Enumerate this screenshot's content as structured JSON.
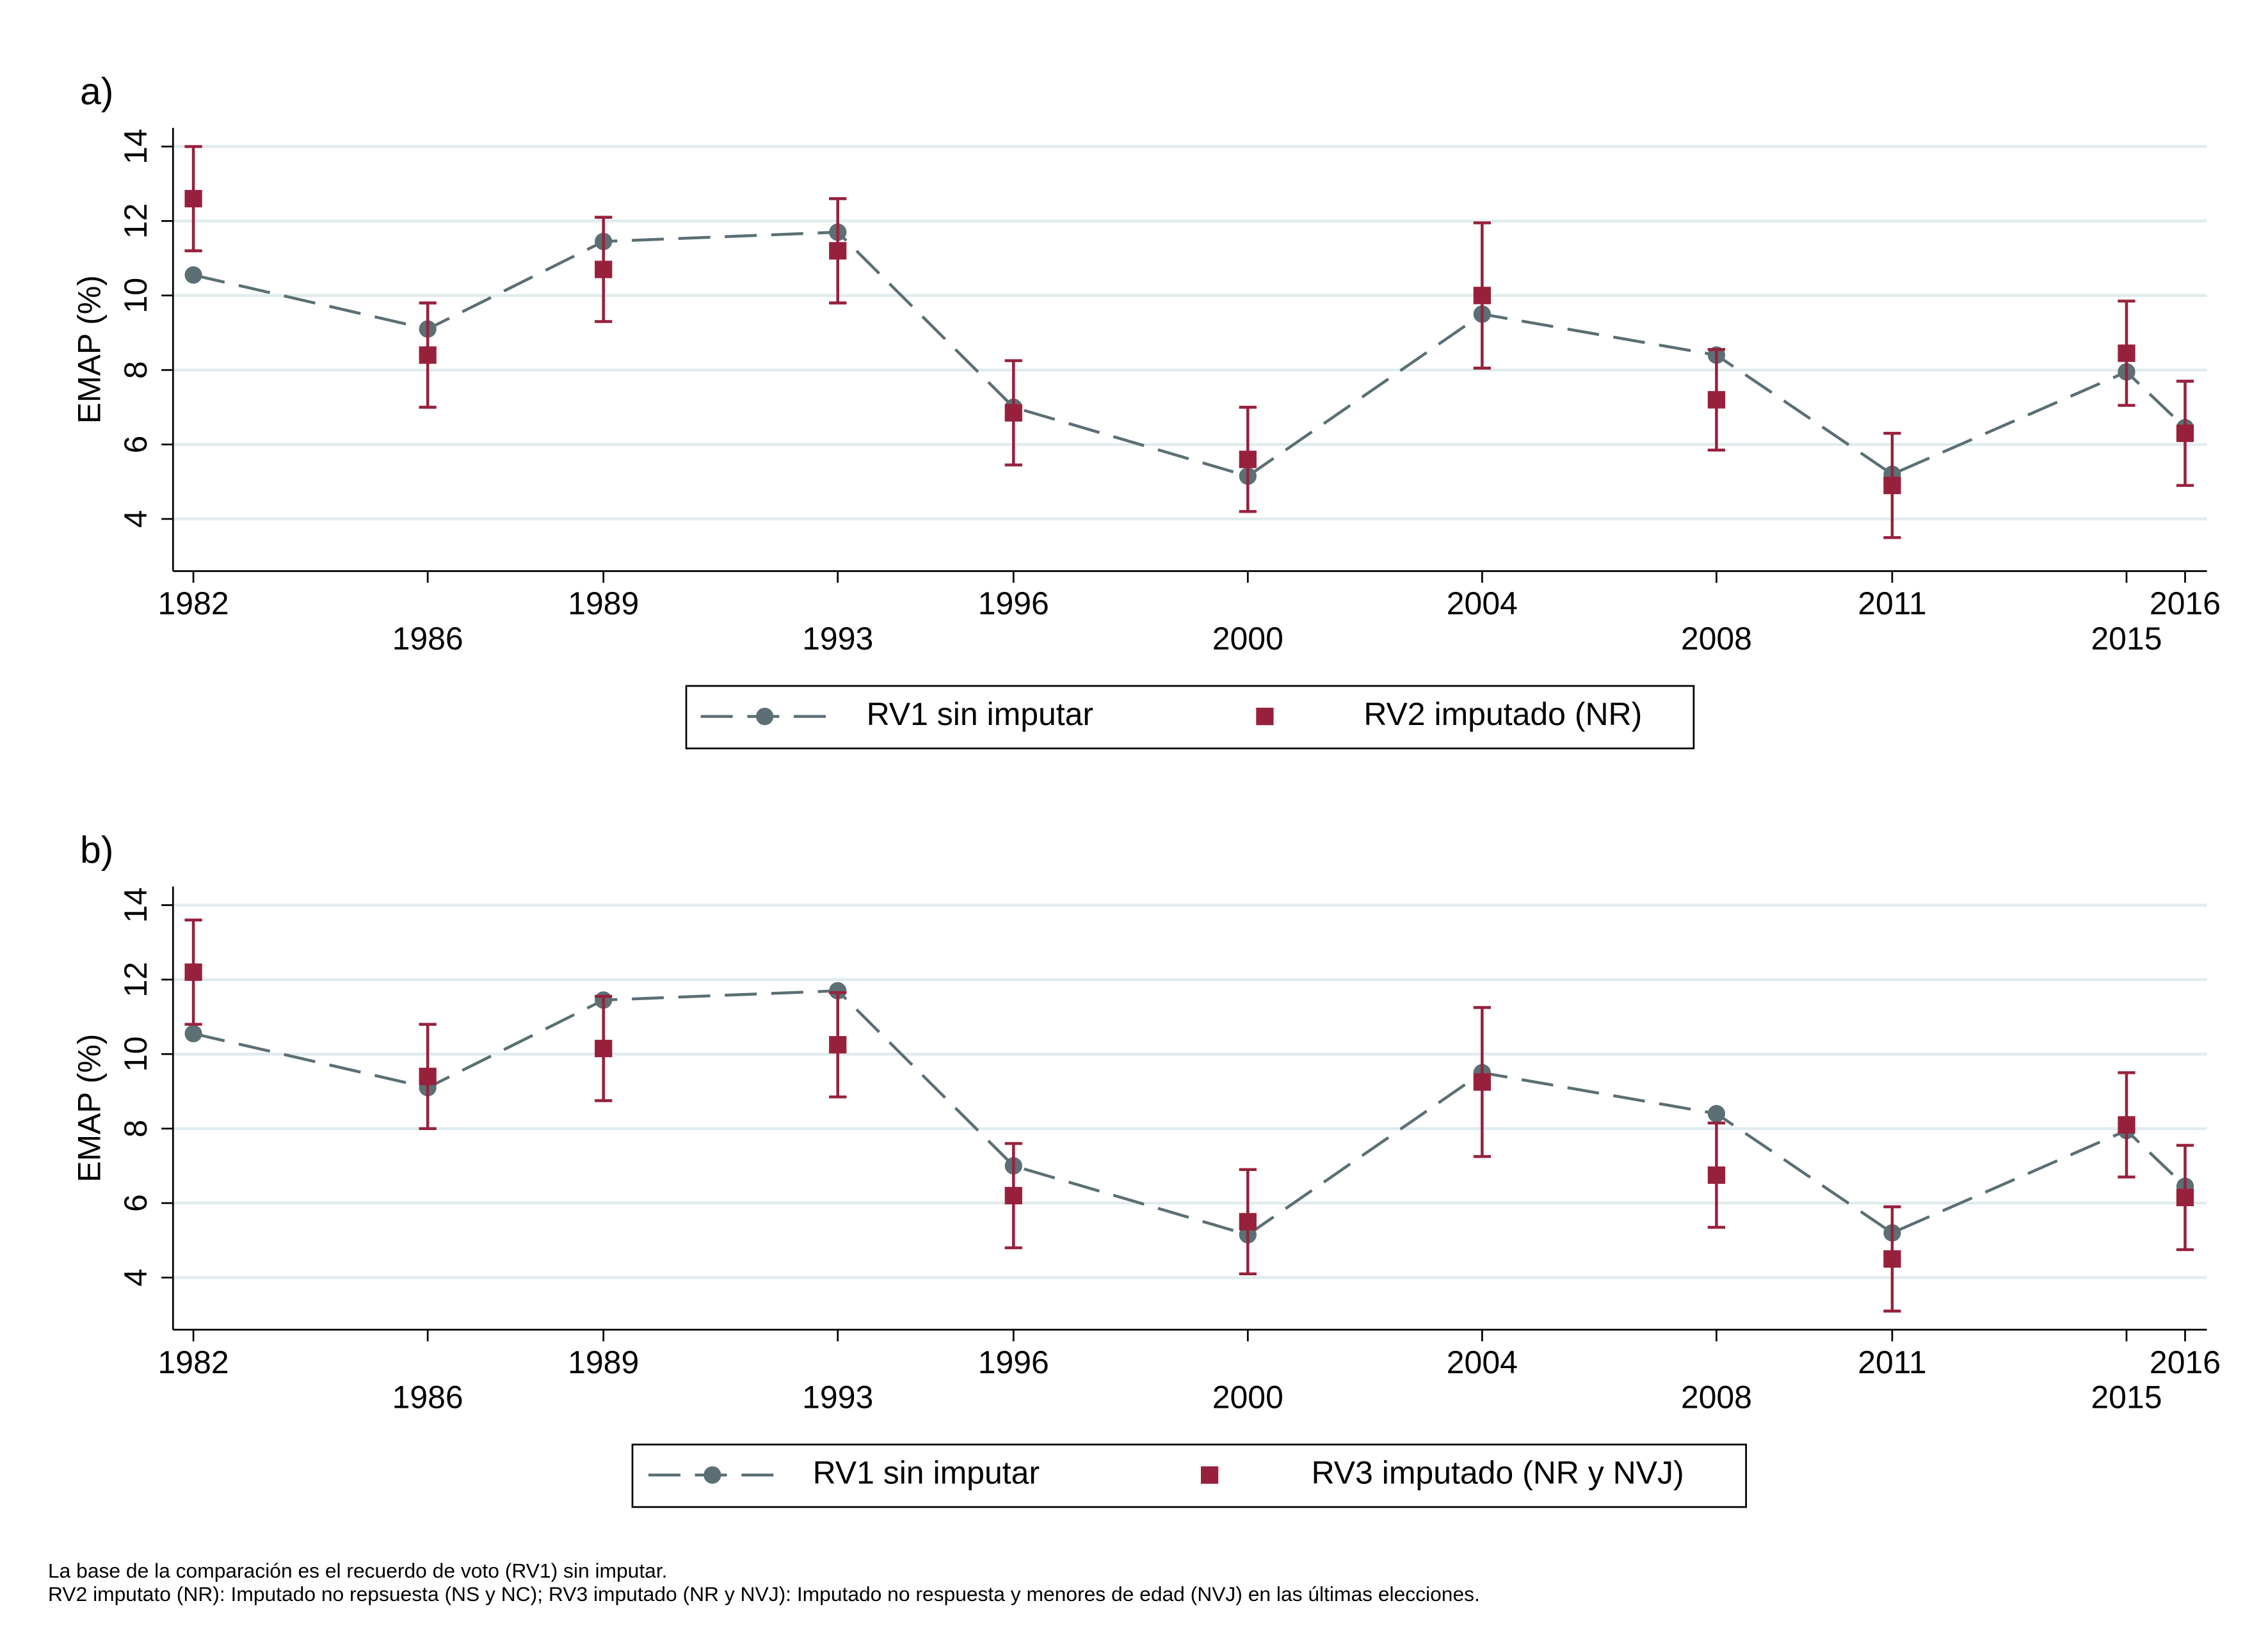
{
  "chart_data": [
    {
      "type": "line",
      "panel_label": "a)",
      "y_label": "EMAP (%)",
      "x": [
        1982,
        1986,
        1989,
        1993,
        1996,
        2000,
        2004,
        2008,
        2011,
        2015,
        2016
      ],
      "xlim": [
        1982,
        2016
      ],
      "xticks": [
        1982,
        1986,
        1989,
        1993,
        1996,
        2000,
        2004,
        2008,
        2011,
        2015,
        2016
      ],
      "ylim": [
        2.6,
        14.5
      ],
      "yticks": [
        4,
        6,
        8,
        10,
        12,
        14
      ],
      "grid": true,
      "series": [
        {
          "name": "RV1 sin imputar",
          "color": "#5b6f75",
          "line": "dashed",
          "marker": "circle",
          "values": [
            10.55,
            9.1,
            11.45,
            11.7,
            7.0,
            5.15,
            9.5,
            8.4,
            5.2,
            7.95,
            6.45
          ]
        },
        {
          "name": "RV2 imputado (NR)",
          "color": "#97213c",
          "line": "none",
          "marker": "square",
          "values": [
            12.6,
            8.4,
            10.7,
            11.2,
            6.85,
            5.6,
            10.0,
            7.2,
            4.9,
            8.45,
            6.3
          ],
          "errors": [
            1.4,
            1.4,
            1.4,
            1.4,
            1.4,
            1.4,
            1.95,
            1.35,
            1.4,
            1.4,
            1.4
          ]
        }
      ]
    },
    {
      "type": "line",
      "panel_label": "b)",
      "y_label": "EMAP (%)",
      "x": [
        1982,
        1986,
        1989,
        1993,
        1996,
        2000,
        2004,
        2008,
        2011,
        2015,
        2016
      ],
      "xlim": [
        1982,
        2016
      ],
      "xticks": [
        1982,
        1986,
        1989,
        1993,
        1996,
        2000,
        2004,
        2008,
        2011,
        2015,
        2016
      ],
      "ylim": [
        2.6,
        14.5
      ],
      "yticks": [
        4,
        6,
        8,
        10,
        12,
        14
      ],
      "grid": true,
      "series": [
        {
          "name": "RV1 sin imputar",
          "color": "#5b6f75",
          "line": "dashed",
          "marker": "circle",
          "values": [
            10.55,
            9.1,
            11.45,
            11.7,
            7.0,
            5.15,
            9.5,
            8.4,
            5.2,
            7.95,
            6.45
          ]
        },
        {
          "name": "RV3 imputado (NR y NVJ)",
          "color": "#97213c",
          "line": "none",
          "marker": "square",
          "values": [
            12.2,
            9.4,
            10.15,
            10.25,
            6.2,
            5.5,
            9.25,
            6.75,
            4.5,
            8.1,
            6.15
          ],
          "errors": [
            1.4,
            1.4,
            1.4,
            1.4,
            1.4,
            1.4,
            2.0,
            1.4,
            1.4,
            1.4,
            1.4
          ]
        }
      ]
    }
  ],
  "notes": [
    "La base de la comparación es el recuerdo de voto (RV1) sin imputar.",
    "RV2 imputato (NR): Imputado no repsuesta (NS y NC); RV3 imputado (NR y NVJ): Imputado no respuesta y menores de edad (NVJ) en las últimas elecciones."
  ]
}
